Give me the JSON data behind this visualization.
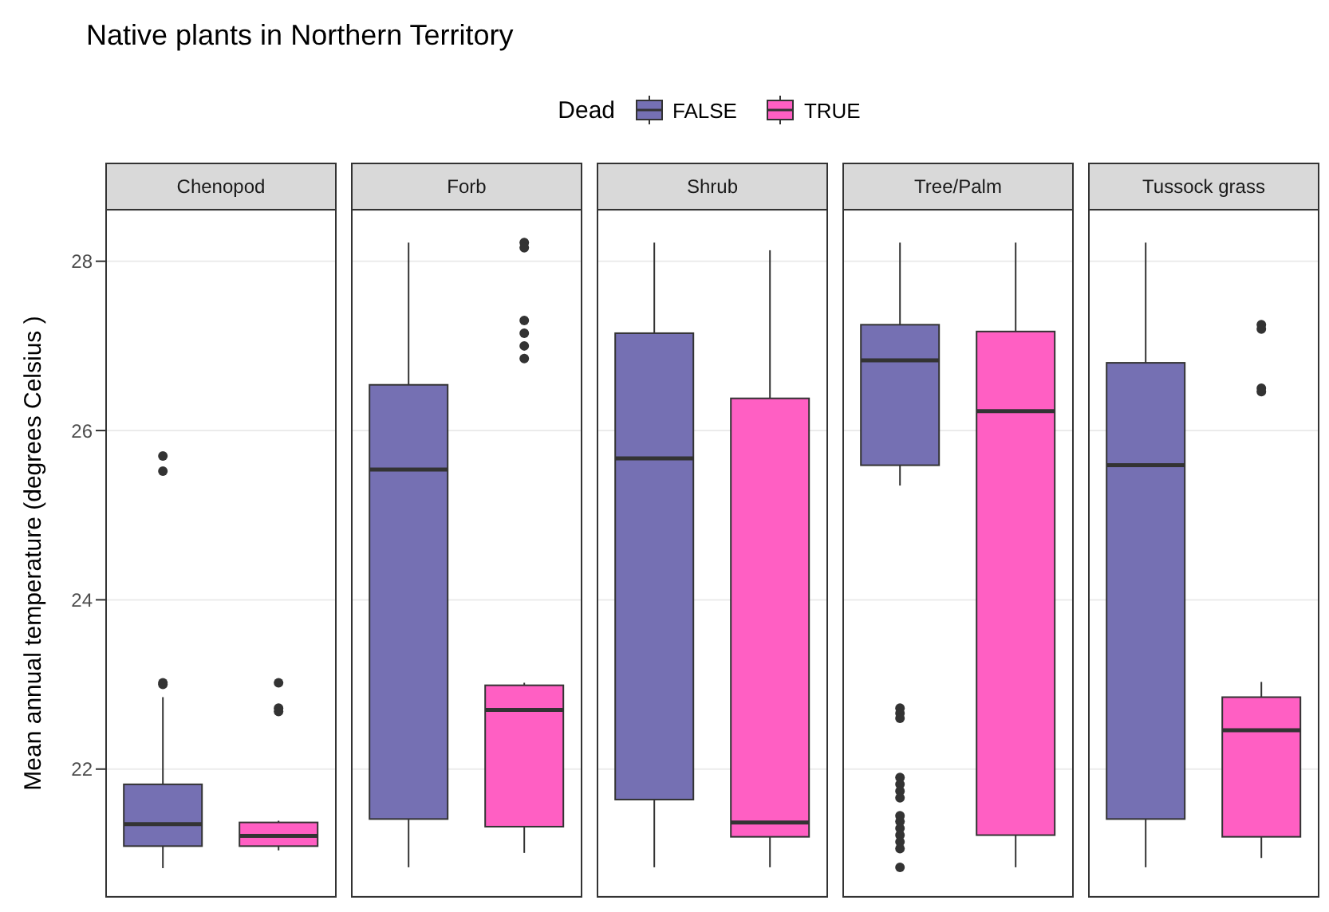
{
  "chart_data": {
    "type": "box",
    "title": "Native plants in Northern Territory",
    "ylabel": "Mean annual temperature (degrees Celsius )",
    "legend_title": "Dead",
    "categories": [
      "Chenopod",
      "Forb",
      "Shrub",
      "Tree/Palm",
      "Tussock grass"
    ],
    "series": [
      {
        "name": "FALSE",
        "color": "#7570b3",
        "boxes": [
          {
            "low": 20.83,
            "q1": 21.09,
            "median": 21.35,
            "q3": 21.82,
            "high": 22.85,
            "outliers": [
              25.7,
              25.52,
              23.02,
              23.0
            ]
          },
          {
            "low": 20.84,
            "q1": 21.41,
            "median": 25.54,
            "q3": 26.54,
            "high": 28.22
          },
          {
            "low": 20.84,
            "q1": 21.64,
            "median": 25.67,
            "q3": 27.15,
            "high": 28.22
          },
          {
            "low": 25.35,
            "q1": 25.59,
            "median": 26.83,
            "q3": 27.25,
            "high": 28.22,
            "outliers": [
              22.72,
              22.66,
              22.6,
              21.9,
              21.82,
              21.74,
              21.66,
              21.45,
              21.38,
              21.3,
              21.22,
              21.14,
              21.06,
              20.84
            ]
          },
          {
            "low": 20.84,
            "q1": 21.41,
            "median": 25.59,
            "q3": 26.8,
            "high": 28.22
          }
        ]
      },
      {
        "name": "TRUE",
        "color": "#ff5fc3",
        "boxes": [
          {
            "low": 21.04,
            "q1": 21.09,
            "median": 21.21,
            "q3": 21.37,
            "high": 21.39,
            "outliers": [
              23.02,
              22.72,
              22.68
            ]
          },
          {
            "low": 21.01,
            "q1": 21.32,
            "median": 22.7,
            "q3": 22.99,
            "high": 23.02,
            "outliers": [
              28.22,
              28.16,
              27.3,
              27.15,
              27.0,
              26.85
            ]
          },
          {
            "low": 20.84,
            "q1": 21.2,
            "median": 21.37,
            "q3": 26.38,
            "high": 28.13
          },
          {
            "low": 20.84,
            "q1": 21.22,
            "median": 26.23,
            "q3": 27.17,
            "high": 28.22
          },
          {
            "low": 20.95,
            "q1": 21.2,
            "median": 22.46,
            "q3": 22.85,
            "high": 23.03,
            "outliers": [
              27.25,
              27.2,
              26.5,
              26.46
            ]
          }
        ]
      }
    ],
    "ylim": [
      20.5,
      28.6
    ],
    "yticks": [
      22,
      24,
      26,
      28
    ],
    "grid": "y",
    "legend": "top"
  }
}
